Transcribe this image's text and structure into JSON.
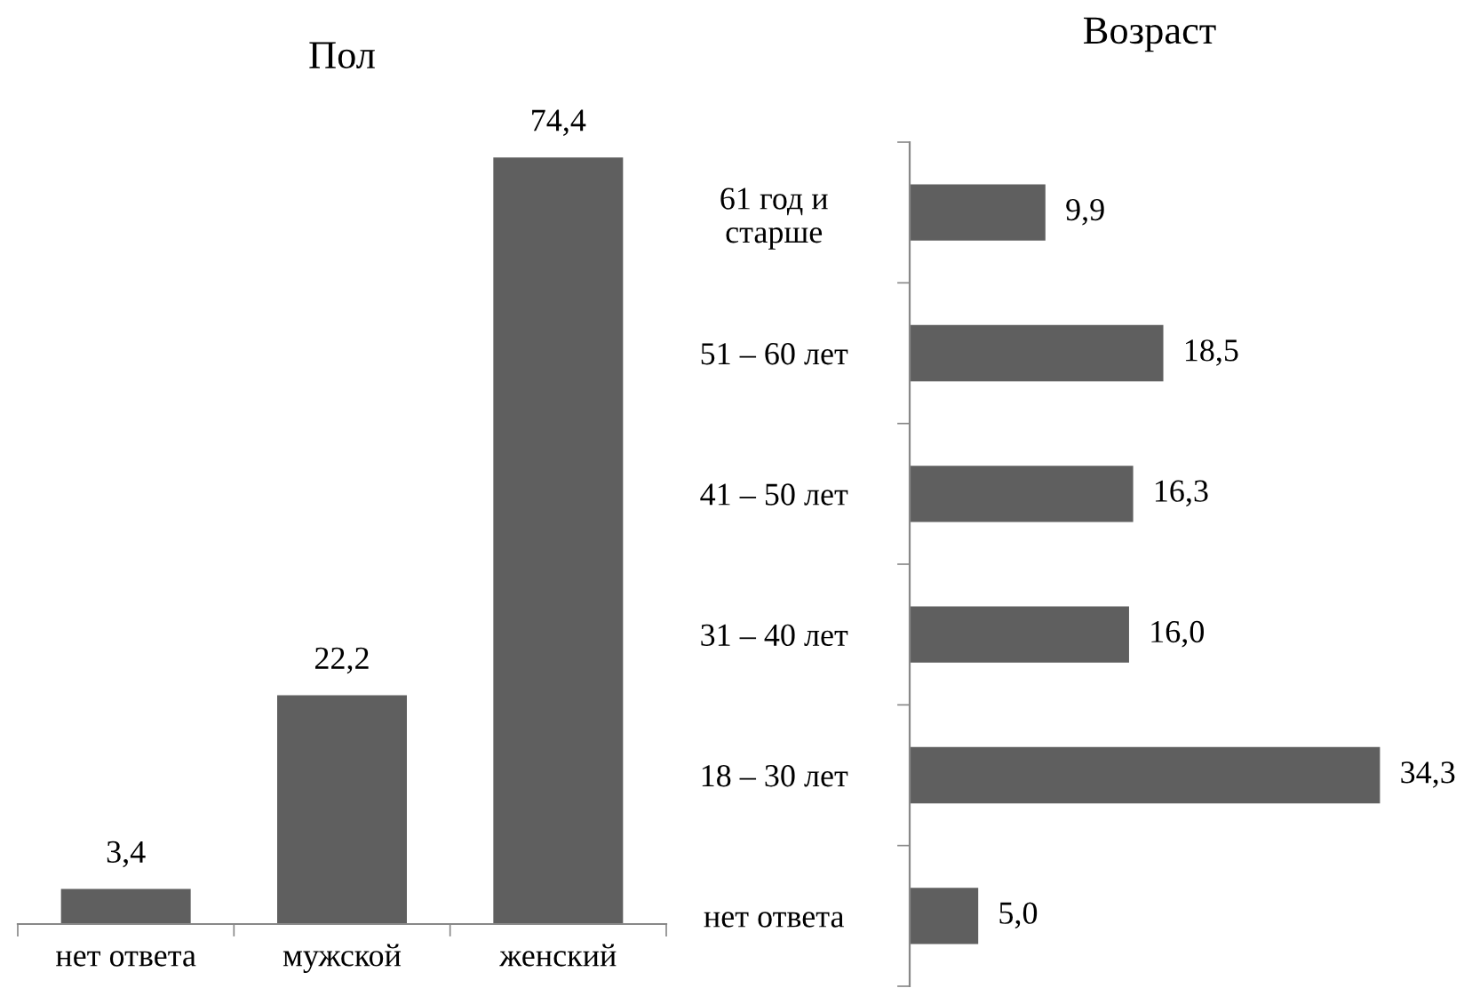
{
  "chart_data": [
    {
      "type": "bar",
      "title": "Пол",
      "categories": [
        "нет ответа",
        "мужской",
        "женский"
      ],
      "color": "#5f5f5f",
      "values": [
        3.4,
        22.2,
        74.4
      ],
      "value_labels": [
        "3,4",
        "22,2",
        "74,4"
      ],
      "grid": false
    },
    {
      "type": "bar",
      "orientation": "horizontal",
      "title": "Возраст",
      "categories": [
        "61 год и\nстарше",
        "51 – 60 лет",
        "41 – 50 лет",
        "31 – 40 лет",
        "18 – 30 лет",
        "нет ответа"
      ],
      "color": "#5f5f5f",
      "values": [
        9.9,
        18.5,
        16.3,
        16.0,
        34.3,
        5.0
      ],
      "value_labels": [
        "9,9",
        "18,5",
        "16,3",
        "16,0",
        "34,3",
        "5,0"
      ],
      "grid": false
    }
  ]
}
